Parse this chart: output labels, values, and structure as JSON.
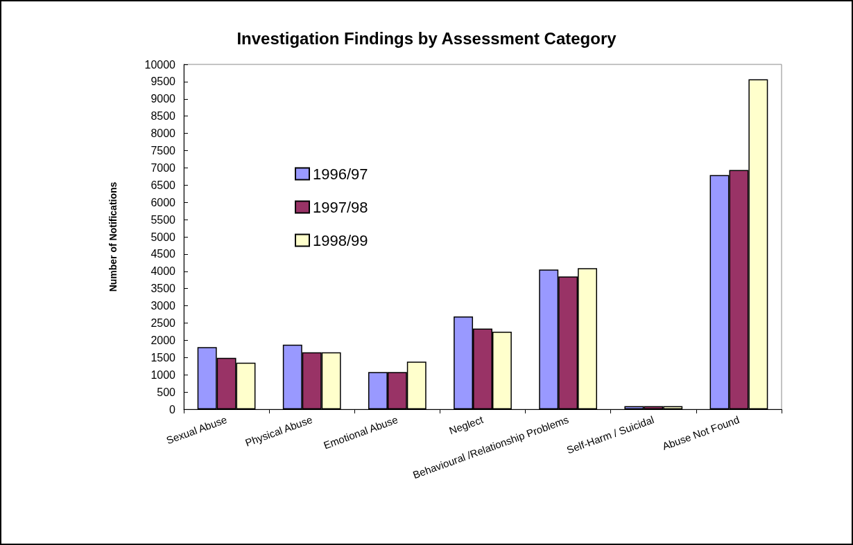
{
  "chart_data": {
    "type": "bar",
    "title": "Investigation Findings by Assessment Category",
    "ylabel": "Number of Notifications",
    "categories": [
      "Sexual Abuse",
      "Physical Abuse",
      "Emotional Abuse",
      "Neglect",
      "Behavioural /Relationship Problems",
      "Self-Harm / Suicidal",
      "Abuse Not Found"
    ],
    "series": [
      {
        "name": "1996/97",
        "color": "#9999ff",
        "values": [
          1800,
          1870,
          1080,
          2690,
          4050,
          90,
          6790
        ]
      },
      {
        "name": "1997/98",
        "color": "#993366",
        "values": [
          1490,
          1650,
          1080,
          2340,
          3850,
          90,
          6940
        ]
      },
      {
        "name": "1998/99",
        "color": "#ffffcc",
        "values": [
          1350,
          1650,
          1380,
          2250,
          4090,
          90,
          9570
        ]
      }
    ],
    "ylim": [
      0,
      10000
    ],
    "yticks": [
      0,
      500,
      1000,
      1500,
      2000,
      2500,
      3000,
      3500,
      4000,
      4500,
      5000,
      5500,
      6000,
      6500,
      7000,
      7500,
      8000,
      8500,
      9000,
      9500,
      10000
    ],
    "grid": false,
    "legend": "left"
  }
}
